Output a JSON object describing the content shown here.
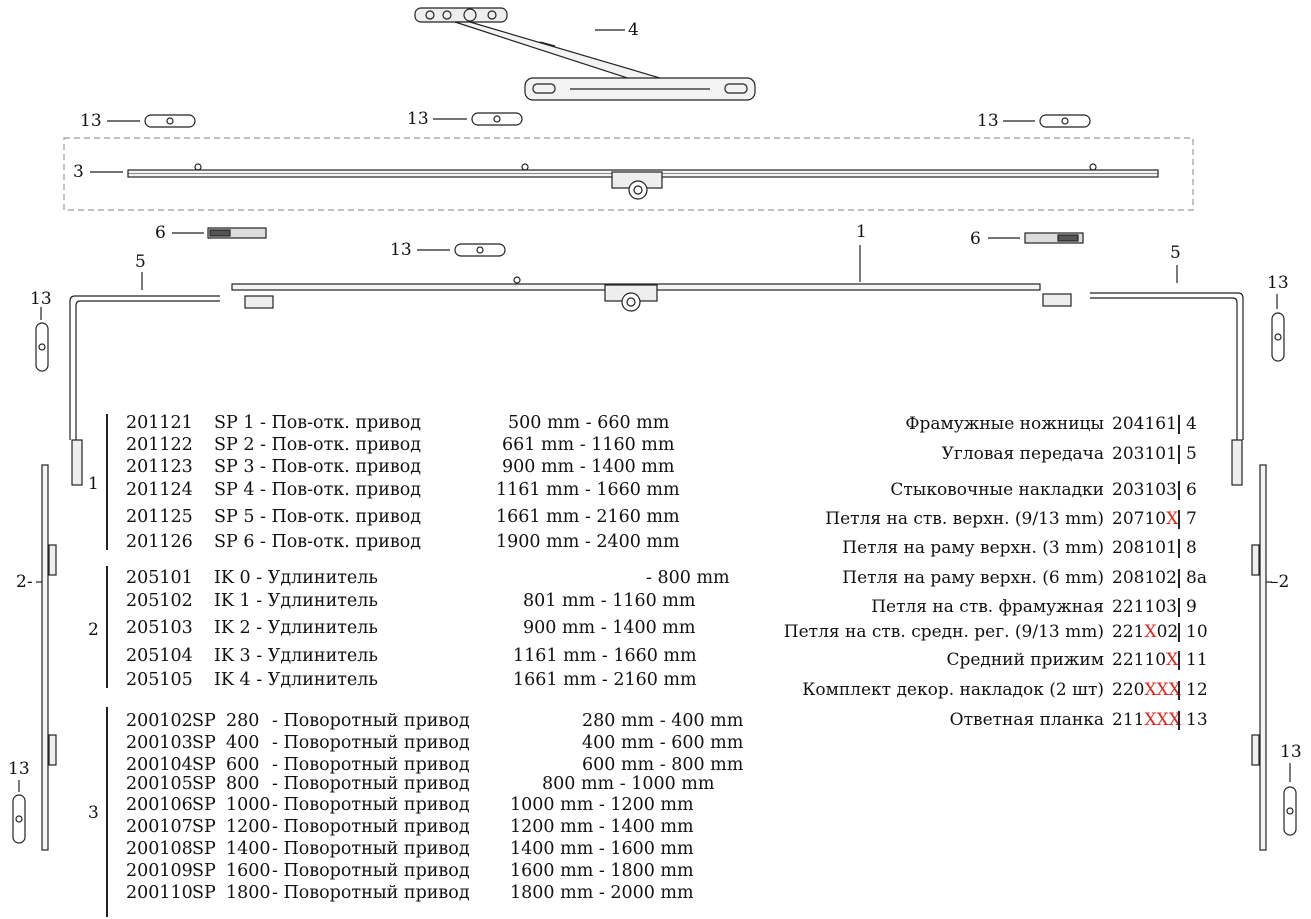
{
  "callouts": {
    "c4": "4",
    "c3": "3",
    "c1": "1",
    "c5_left": "5",
    "c5_right": "5",
    "c6_left": "6",
    "c6_right": "6",
    "c13_top1": "13",
    "c13_top2": "13",
    "c13_top3": "13",
    "c13_mid": "13",
    "c13_left": "13",
    "c13_right": "13",
    "c13_left_low": "13",
    "c13_right_low": "13",
    "c2_left": "2-",
    "c2_right": "–2"
  },
  "groups": [
    {
      "number": "1",
      "rows": [
        {
          "code": "201121",
          "name": "SP 1 - Пов-отк. привод",
          "range": "500 mm - 660 mm"
        },
        {
          "code": "201122",
          "name": "SP 2 - Пов-отк. привод",
          "range": "661 mm - 1160 mm"
        },
        {
          "code": "201123",
          "name": "SP 3 - Пов-отк. привод",
          "range": "900 mm - 1400 mm"
        },
        {
          "code": "201124",
          "name": "SP 4 - Пов-отк. привод",
          "range": "1161 mm - 1660 mm"
        },
        {
          "code": "201125",
          "name": "SP 5 - Пов-отк. привод",
          "range": "1661 mm - 2160 mm"
        },
        {
          "code": "201126",
          "name": "SP 6 - Пов-отк. привод",
          "range": "1900 mm - 2400 mm"
        }
      ]
    },
    {
      "number": "2",
      "rows": [
        {
          "code": "205101",
          "name": "IK 0 - Удлинитель",
          "range": "- 800 mm"
        },
        {
          "code": "205102",
          "name": "IK 1 - Удлинитель",
          "range": "801 mm - 1160 mm"
        },
        {
          "code": "205103",
          "name": "IK 2 - Удлинитель",
          "range": "900 mm - 1400 mm"
        },
        {
          "code": "205104",
          "name": "IK 3 - Удлинитель",
          "range": "1161 mm - 1660 mm"
        },
        {
          "code": "205105",
          "name": "IK 4 - Удлинитель",
          "range": "1661 mm - 2160 mm"
        }
      ]
    },
    {
      "number": "3",
      "rows": [
        {
          "code": "200102",
          "sp": "SP",
          "size": "280",
          "name": "- Поворотный привод",
          "range": "280 mm - 400 mm"
        },
        {
          "code": "200103",
          "sp": "SP",
          "size": "400",
          "name": "- Поворотный привод",
          "range": "400 mm - 600 mm"
        },
        {
          "code": "200104",
          "sp": "SP",
          "size": "600",
          "name": "- Поворотный привод",
          "range": "600 mm - 800 mm"
        },
        {
          "code": "200105",
          "sp": "SP",
          "size": "800",
          "name": "- Поворотный привод",
          "range": "800 mm - 1000 mm"
        },
        {
          "code": "200106",
          "sp": "SP",
          "size": "1000",
          "name": "- Поворотный привод",
          "range": "1000 mm - 1200 mm"
        },
        {
          "code": "200107",
          "sp": "SP",
          "size": "1200",
          "name": "- Поворотный привод",
          "range": "1200 mm - 1400 mm"
        },
        {
          "code": "200108",
          "sp": "SP",
          "size": "1400",
          "name": "- Поворотный привод",
          "range": "1400 mm - 1600 mm"
        },
        {
          "code": "200109",
          "sp": "SP",
          "size": "1600",
          "name": "- Поворотный привод",
          "range": "1600 mm - 1800 mm"
        },
        {
          "code": "200110",
          "sp": "SP",
          "size": "1800",
          "name": "- Поворотный привод",
          "range": "1800 mm - 2000 mm"
        }
      ]
    }
  ],
  "parts": [
    {
      "name": "Фрамужные ножницы",
      "code": "204161",
      "code_red": "",
      "code_tail": "",
      "pos": "4"
    },
    {
      "name": "Угловая передача",
      "code": "203101",
      "code_red": "",
      "code_tail": "",
      "pos": "5"
    },
    {
      "name": "Стыковочные накладки",
      "code": "203103",
      "code_red": "",
      "code_tail": "",
      "pos": "6"
    },
    {
      "name": "Петля на ств. верхн. (9/13 mm)",
      "code": "20710",
      "code_red": "X",
      "code_tail": "",
      "pos": "7"
    },
    {
      "name": "Петля на раму верхн. (3 mm)",
      "code": "208101",
      "code_red": "",
      "code_tail": "",
      "pos": "8"
    },
    {
      "name": "Петля на раму верхн. (6 mm)",
      "code": "208102",
      "code_red": "",
      "code_tail": "",
      "pos": "8a"
    },
    {
      "name": "Петля на ств. фрамужная",
      "code": "221103",
      "code_red": "",
      "code_tail": "",
      "pos": "9"
    },
    {
      "name": "Петля на ств. средн. рег. (9/13 mm)",
      "code": "221",
      "code_red": "X",
      "code_tail": "02",
      "pos": "10"
    },
    {
      "name": "Средний прижим",
      "code": "22110",
      "code_red": "X",
      "code_tail": "",
      "pos": "11"
    },
    {
      "name": "Комплект декор. накладок (2 шт)",
      "code": "220",
      "code_red": "XXX",
      "code_tail": "",
      "pos": "12"
    },
    {
      "name": "Ответная планка",
      "code": "211",
      "code_red": "XXX",
      "code_tail": "",
      "pos": "13"
    }
  ],
  "colors": {
    "accent_red": "#e0261c",
    "line": "#222222"
  }
}
